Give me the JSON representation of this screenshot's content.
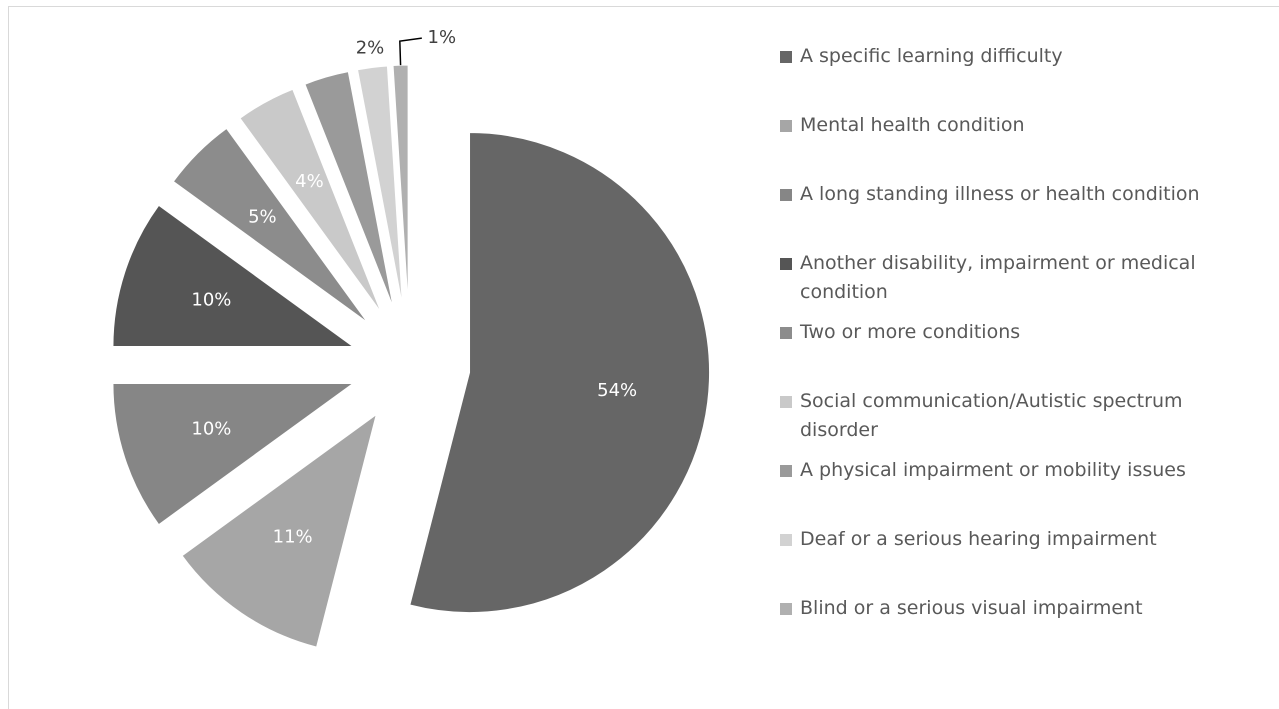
{
  "chart_data": {
    "type": "pie",
    "categories": [
      "A specific learning difficulty",
      "Mental health condition",
      "A long standing illness or health condition",
      "Another disability, impairment or medical condition",
      "Two or more conditions",
      "Social communication/Autistic spectrum disorder",
      "A physical impairment or mobility issues",
      "Deaf or a serious hearing impairment",
      "Blind or a serious visual impairment"
    ],
    "values": [
      54,
      11,
      10,
      10,
      5,
      4,
      3,
      2,
      1
    ],
    "value_labels": [
      "54%",
      "11%",
      "10%",
      "10%",
      "5%",
      "4%",
      null,
      "2%",
      "1%"
    ],
    "colors": [
      "#666666",
      "#a6a6a6",
      "#868686",
      "#555555",
      "#8c8c8c",
      "#c9c9c9",
      "#9a9a9a",
      "#d2d2d2",
      "#b0b0b0"
    ],
    "legend": "right"
  }
}
